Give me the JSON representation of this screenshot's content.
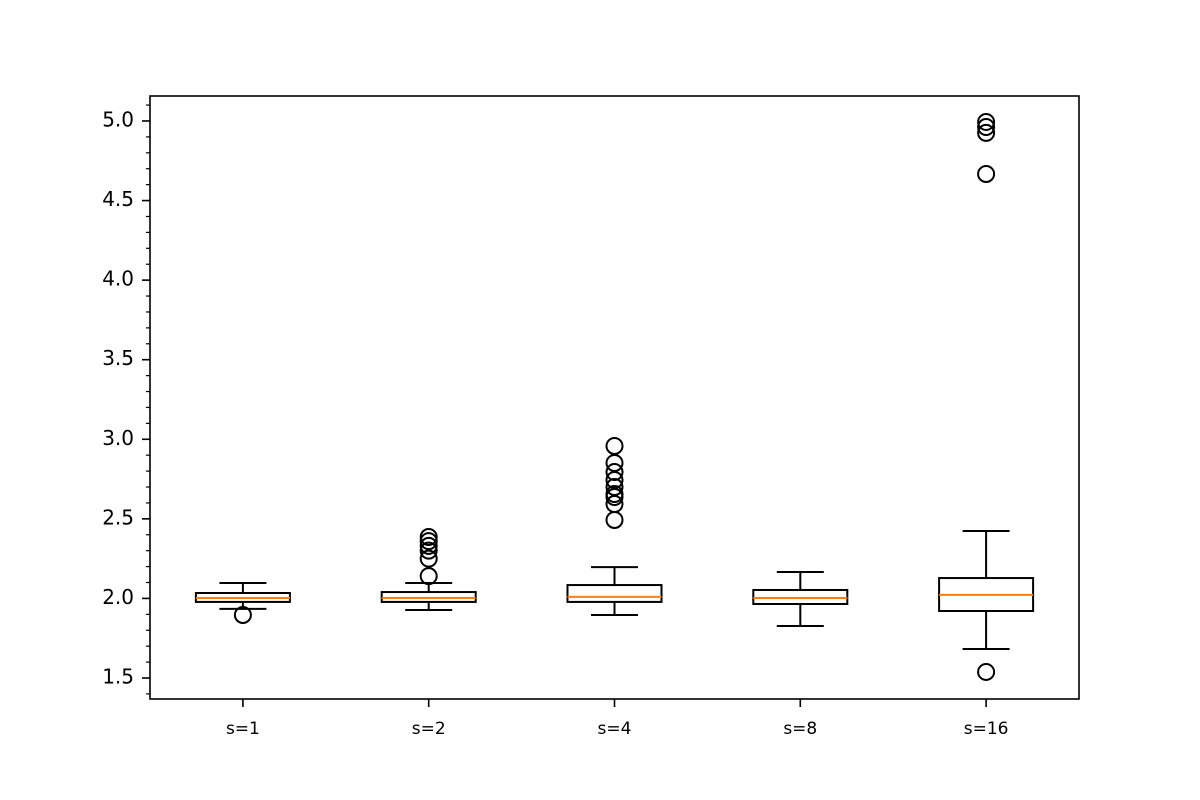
{
  "chart_data": {
    "type": "box",
    "categories": [
      "s=1",
      "s=2",
      "s=4",
      "s=8",
      "s=16"
    ],
    "boxes": [
      {
        "whisker_low": 1.934,
        "q1": 1.978,
        "median": 2.003,
        "q3": 2.034,
        "whisker_high": 2.097,
        "outliers": [
          1.896
        ]
      },
      {
        "whisker_low": 1.927,
        "q1": 1.978,
        "median": 2.003,
        "q3": 2.04,
        "whisker_high": 2.097,
        "outliers": [
          2.386,
          2.36,
          2.33,
          2.3,
          2.25,
          2.14
        ]
      },
      {
        "whisker_low": 1.896,
        "q1": 1.978,
        "median": 2.01,
        "q3": 2.084,
        "whisker_high": 2.197,
        "outliers": [
          2.958,
          2.851,
          2.794,
          2.744,
          2.7,
          2.656,
          2.637,
          2.593,
          2.493
        ]
      },
      {
        "whisker_low": 1.827,
        "q1": 1.965,
        "median": 2.003,
        "q3": 2.053,
        "whisker_high": 2.166,
        "outliers": []
      },
      {
        "whisker_low": 1.682,
        "q1": 1.921,
        "median": 2.022,
        "q3": 2.128,
        "whisker_high": 2.424,
        "outliers": [
          4.994,
          4.962,
          4.925,
          4.667,
          1.538
        ]
      }
    ],
    "box_color": "#000000",
    "median_color": "#ff7f0e",
    "ylim": [
      1.368,
      5.157
    ],
    "yticks": [
      {
        "value": 1.5,
        "label": "1.5"
      },
      {
        "value": 2,
        "label": "2.0"
      },
      {
        "value": 2.5,
        "label": "2.5"
      },
      {
        "value": 3,
        "label": "3.0"
      },
      {
        "value": 3.5,
        "label": "3.5"
      },
      {
        "value": 4,
        "label": "4.0"
      },
      {
        "value": 4.5,
        "label": "4.5"
      },
      {
        "value": 5,
        "label": "5.0"
      }
    ],
    "yticks_minor": [
      1.4,
      1.6,
      1.7,
      1.8,
      1.9,
      2.1,
      2.2,
      2.3,
      2.4,
      2.6,
      2.7,
      2.8,
      2.9,
      3.1,
      3.2,
      3.3,
      3.4,
      3.6,
      3.7,
      3.8,
      3.9,
      4.1,
      4.2,
      4.3,
      4.4,
      4.6,
      4.7,
      4.8,
      4.9,
      5.1
    ],
    "grid": false
  }
}
